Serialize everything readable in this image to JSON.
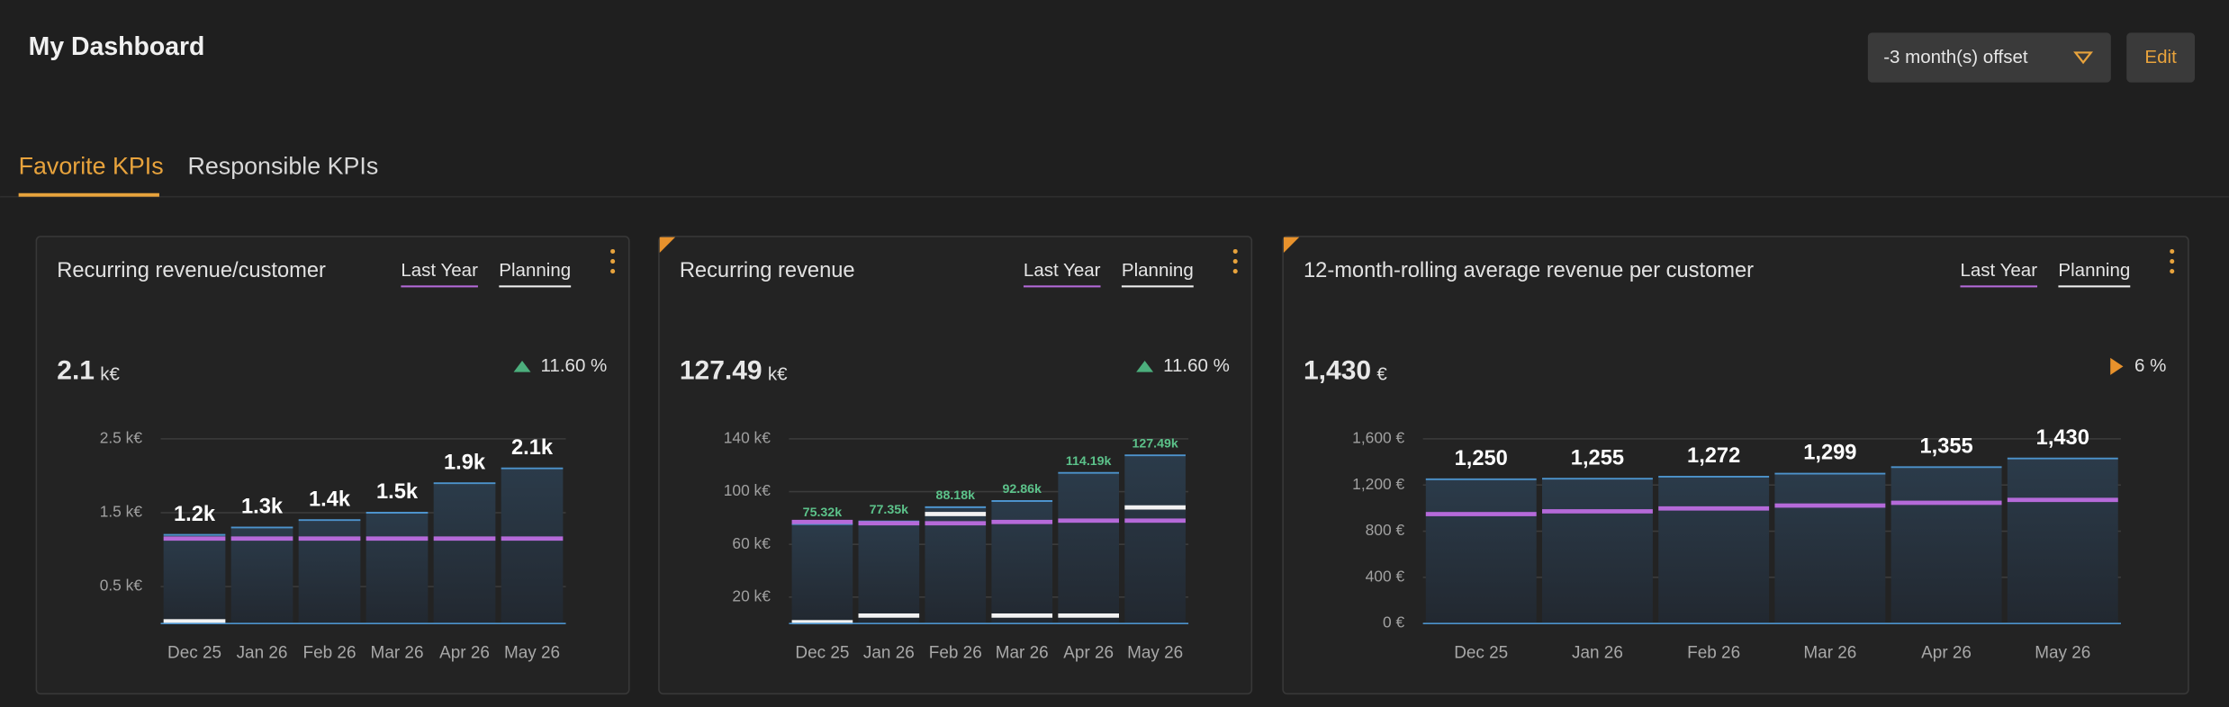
{
  "header": {
    "title": "My Dashboard",
    "offset": "-3 month(s) offset",
    "edit": "Edit"
  },
  "tabs": [
    "Favorite KPIs",
    "Responsible KPIs"
  ],
  "chart_data": [
    {
      "type": "bar",
      "title": "Recurring revenue/customer",
      "kpi_value": "2.1",
      "kpi_unit": "k€",
      "change": "11.60 %",
      "change_icon": "up",
      "change_color": "#4caf7d",
      "categories": [
        "Dec 25",
        "Jan 26",
        "Feb 26",
        "Mar 26",
        "Apr 26",
        "May 26"
      ],
      "values": [
        1.2,
        1.3,
        1.4,
        1.5,
        1.9,
        2.1
      ],
      "value_labels": [
        "1.2k",
        "1.3k",
        "1.4k",
        "1.5k",
        "1.9k",
        "2.1k"
      ],
      "label_color": "#ffffff",
      "series": [
        {
          "name": "Last Year",
          "color": "#b56ad9",
          "values": [
            1.15,
            1.15,
            1.15,
            1.15,
            1.15,
            1.15
          ]
        },
        {
          "name": "Planning",
          "color": "#f2f2f2",
          "values": [
            0.03,
            null,
            null,
            null,
            null,
            null
          ]
        }
      ],
      "ylim": [
        0,
        2.5
      ],
      "yticks": [
        {
          "value": 0.5,
          "label": "0.5 k€"
        },
        {
          "value": 1.5,
          "label": "1.5 k€"
        },
        {
          "value": 2.5,
          "label": "2.5 k€"
        }
      ],
      "grid": true
    },
    {
      "type": "bar",
      "title": "Recurring revenue",
      "kpi_value": "127.49",
      "kpi_unit": "k€",
      "change": "11.60 %",
      "change_icon": "up",
      "change_color": "#4caf7d",
      "categories": [
        "Dec 25",
        "Jan 26",
        "Feb 26",
        "Mar 26",
        "Apr 26",
        "May 26"
      ],
      "values": [
        75.32,
        77.35,
        88.18,
        92.86,
        114.19,
        127.49
      ],
      "value_labels": [
        "75.32k",
        "77.35k",
        "88.18k",
        "92.86k",
        "114.19k",
        "127.49k"
      ],
      "label_color": "#5cc28a",
      "series": [
        {
          "name": "Last Year",
          "color": "#b56ad9",
          "values": [
            77,
            76,
            76,
            77,
            78,
            78
          ]
        },
        {
          "name": "Planning",
          "color": "#f2f2f2",
          "values": [
            1,
            6,
            83,
            6,
            6,
            88
          ]
        }
      ],
      "ylim": [
        0,
        140
      ],
      "yticks": [
        {
          "value": 20,
          "label": "20 k€"
        },
        {
          "value": 60,
          "label": "60 k€"
        },
        {
          "value": 100,
          "label": "100 k€"
        },
        {
          "value": 140,
          "label": "140 k€"
        }
      ],
      "grid": true
    },
    {
      "type": "bar",
      "title": "12-month-rolling average revenue per customer",
      "kpi_value": "1,430",
      "kpi_unit": "€",
      "change": "6 %",
      "change_icon": "right",
      "change_color": "#e8922c",
      "categories": [
        "Dec 25",
        "Jan 26",
        "Feb 26",
        "Mar 26",
        "Apr 26",
        "May 26"
      ],
      "values": [
        1250,
        1255,
        1272,
        1299,
        1355,
        1430
      ],
      "value_labels": [
        "1,250",
        "1,255",
        "1,272",
        "1,299",
        "1,355",
        "1,430"
      ],
      "label_color": "#ffffff",
      "series": [
        {
          "name": "Last Year",
          "color": "#b56ad9",
          "values": [
            948,
            972,
            997,
            1022,
            1046,
            1071
          ]
        },
        {
          "name": "Planning",
          "color": "#f2f2f2",
          "values": [
            null,
            null,
            null,
            null,
            null,
            null
          ]
        }
      ],
      "ylim": [
        0,
        1600
      ],
      "yticks": [
        {
          "value": 0,
          "label": "0 €"
        },
        {
          "value": 400,
          "label": "400 €"
        },
        {
          "value": 800,
          "label": "800 €"
        },
        {
          "value": 1200,
          "label": "1,200 €"
        },
        {
          "value": 1600,
          "label": "1,600 €"
        }
      ],
      "grid": true
    }
  ]
}
